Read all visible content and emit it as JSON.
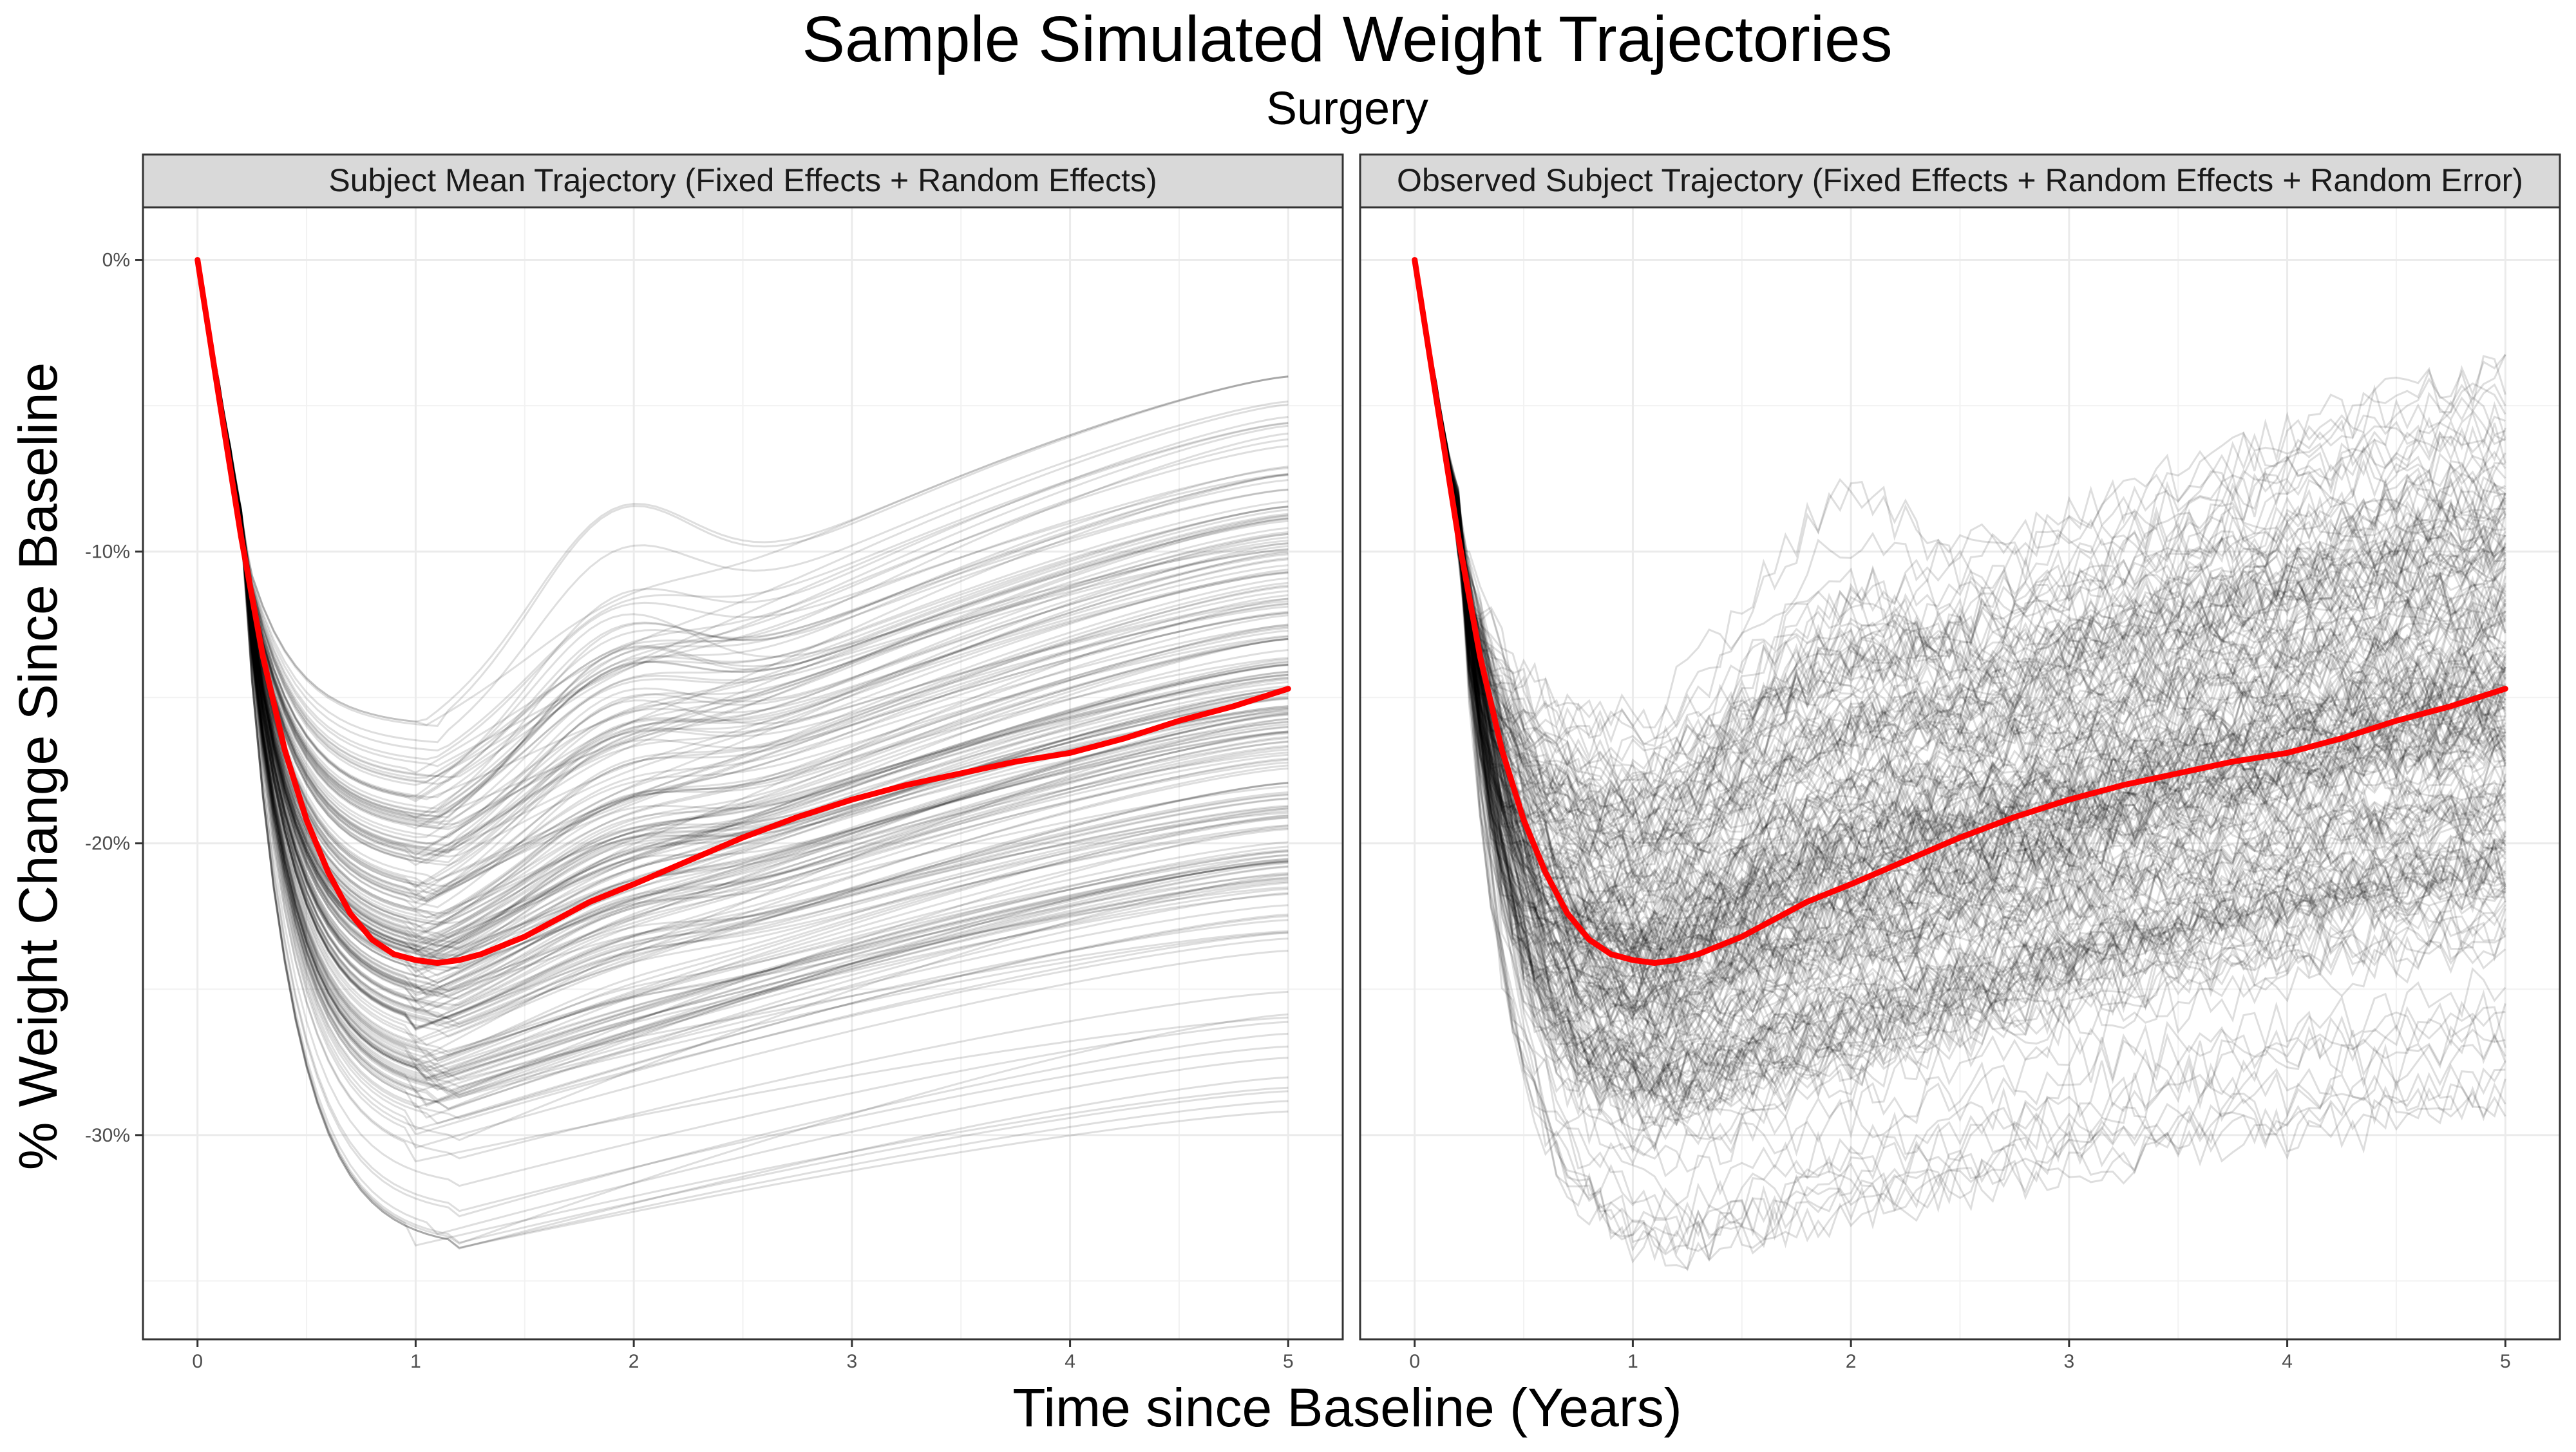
{
  "chart_data": {
    "type": "line",
    "title": "Sample Simulated Weight Trajectories",
    "subtitle": "Surgery",
    "xlabel": "Time since Baseline (Years)",
    "ylabel": "% Weight Change Since Baseline",
    "xlim": [
      -0.25,
      5.25
    ],
    "ylim": [
      -37,
      1.8
    ],
    "x_ticks": [
      0,
      1,
      2,
      3,
      4,
      5
    ],
    "x_tick_labels": [
      "0",
      "1",
      "2",
      "3",
      "4",
      "5"
    ],
    "y_ticks": [
      0,
      -10,
      -20,
      -30
    ],
    "y_tick_labels": [
      "0%",
      "-10%",
      "-20%",
      "-30%"
    ],
    "grid": true,
    "colors": {
      "mean_line": "#ff0000",
      "subject_lines": "#000000",
      "strip_fill": "#d9d9d9",
      "grid": "#ebebeb",
      "panel_border": "#333333"
    },
    "panels": [
      {
        "strip_label": "Subject Mean Trajectory (Fixed Effects + Random Effects)",
        "noise": false
      },
      {
        "strip_label": "Observed Subject Trajectory (Fixed Effects + Random Effects + Random Error)",
        "noise": true
      }
    ],
    "mean_trajectory": {
      "x": [
        0,
        0.1,
        0.2,
        0.3,
        0.4,
        0.5,
        0.6,
        0.7,
        0.8,
        0.9,
        1.0,
        1.1,
        1.2,
        1.3,
        1.4,
        1.5,
        1.6,
        1.7,
        1.8,
        1.9,
        2.0,
        2.25,
        2.5,
        2.75,
        3.0,
        3.25,
        3.5,
        3.75,
        4.0,
        4.25,
        4.5,
        4.75,
        5.0
      ],
      "y": [
        0,
        -4.8,
        -9.5,
        -13.6,
        -16.8,
        -19.2,
        -21.0,
        -22.4,
        -23.3,
        -23.8,
        -24.0,
        -24.1,
        -24.0,
        -23.8,
        -23.5,
        -23.2,
        -22.8,
        -22.4,
        -22.0,
        -21.7,
        -21.4,
        -20.6,
        -19.8,
        -19.1,
        -18.5,
        -18.0,
        -17.6,
        -17.2,
        -16.9,
        -16.4,
        -15.8,
        -15.3,
        -14.7
      ]
    },
    "subject_spread": {
      "trough_min": -34,
      "trough_max": -16,
      "end_min": -33,
      "end_max": -4
    }
  }
}
